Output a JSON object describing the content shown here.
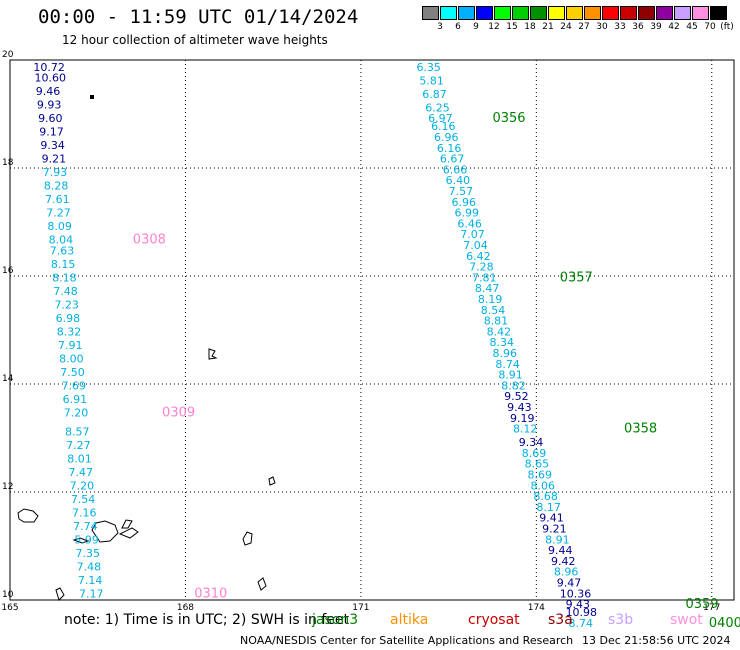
{
  "title": "00:00 - 11:59 UTC 01/14/2024",
  "subtitle": "12 hour collection of altimeter wave heights",
  "legend": {
    "unit": "(ft)",
    "items": [
      {
        "color": "#808080",
        "label": "3"
      },
      {
        "color": "#00ffff",
        "label": "6"
      },
      {
        "color": "#00b0ff",
        "label": "9"
      },
      {
        "color": "#0000ff",
        "label": "12"
      },
      {
        "color": "#00ff00",
        "label": "15"
      },
      {
        "color": "#00d000",
        "label": "18"
      },
      {
        "color": "#009000",
        "label": "21"
      },
      {
        "color": "#ffff00",
        "label": "24"
      },
      {
        "color": "#ffd000",
        "label": "27"
      },
      {
        "color": "#ff9000",
        "label": "30"
      },
      {
        "color": "#ff0000",
        "label": "33"
      },
      {
        "color": "#c80000",
        "label": "36"
      },
      {
        "color": "#900000",
        "label": "39"
      },
      {
        "color": "#9000a0",
        "label": "42"
      },
      {
        "color": "#c8a0ff",
        "label": "45"
      },
      {
        "color": "#ff90e0",
        "label": "70"
      },
      {
        "color": "#000000",
        "label": ""
      }
    ]
  },
  "axes": {
    "x_ticks": [
      "165",
      "168",
      "171",
      "174",
      "177"
    ],
    "y_ticks": [
      "20",
      "18",
      "16",
      "14",
      "12",
      "10"
    ]
  },
  "colors": {
    "cyan": "#00b0e0",
    "navy": "#000090",
    "green": "#008000",
    "pink": "#ff80d0"
  },
  "tracks": [
    {
      "lon": 165.4,
      "lat": 19.8,
      "v": "10.72",
      "c": "navy"
    },
    {
      "lon": 165.42,
      "lat": 19.6,
      "v": "10.60",
      "c": "navy"
    },
    {
      "lon": 165.44,
      "lat": 19.35,
      "v": "9.46",
      "c": "navy"
    },
    {
      "lon": 165.46,
      "lat": 19.1,
      "v": "9.93",
      "c": "navy"
    },
    {
      "lon": 165.48,
      "lat": 18.85,
      "v": "9.60",
      "c": "navy"
    },
    {
      "lon": 165.5,
      "lat": 18.6,
      "v": "9.17",
      "c": "navy"
    },
    {
      "lon": 165.52,
      "lat": 18.35,
      "v": "9.34",
      "c": "navy"
    },
    {
      "lon": 165.54,
      "lat": 18.1,
      "v": "9.21",
      "c": "navy"
    },
    {
      "lon": 165.56,
      "lat": 17.85,
      "v": "7.93",
      "c": "cyan"
    },
    {
      "lon": 165.58,
      "lat": 17.6,
      "v": "8.28",
      "c": "cyan"
    },
    {
      "lon": 165.6,
      "lat": 17.35,
      "v": "7.61",
      "c": "cyan"
    },
    {
      "lon": 165.62,
      "lat": 17.1,
      "v": "7.27",
      "c": "cyan"
    },
    {
      "lon": 165.64,
      "lat": 16.85,
      "v": "8.09",
      "c": "cyan"
    },
    {
      "lon": 165.66,
      "lat": 16.6,
      "v": "8.04",
      "c": "cyan"
    },
    {
      "lon": 165.68,
      "lat": 16.4,
      "v": "7.63",
      "c": "cyan"
    },
    {
      "lon": 165.7,
      "lat": 16.15,
      "v": "8.15",
      "c": "cyan"
    },
    {
      "lon": 165.72,
      "lat": 15.9,
      "v": "8.18",
      "c": "cyan"
    },
    {
      "lon": 165.74,
      "lat": 15.65,
      "v": "7.48",
      "c": "cyan"
    },
    {
      "lon": 165.76,
      "lat": 15.4,
      "v": "7.23",
      "c": "cyan"
    },
    {
      "lon": 165.78,
      "lat": 15.15,
      "v": "6.98",
      "c": "cyan"
    },
    {
      "lon": 165.8,
      "lat": 14.9,
      "v": "8.32",
      "c": "cyan"
    },
    {
      "lon": 165.82,
      "lat": 14.65,
      "v": "7.91",
      "c": "cyan"
    },
    {
      "lon": 165.84,
      "lat": 14.4,
      "v": "8.00",
      "c": "cyan"
    },
    {
      "lon": 165.86,
      "lat": 14.15,
      "v": "7.50",
      "c": "cyan"
    },
    {
      "lon": 165.88,
      "lat": 13.9,
      "v": "7.69",
      "c": "cyan"
    },
    {
      "lon": 165.9,
      "lat": 13.65,
      "v": "6.91",
      "c": "cyan"
    },
    {
      "lon": 165.92,
      "lat": 13.4,
      "v": "7.20",
      "c": "cyan"
    },
    {
      "lon": 165.94,
      "lat": 13.05,
      "v": "8.57",
      "c": "cyan"
    },
    {
      "lon": 165.96,
      "lat": 12.8,
      "v": "7.27",
      "c": "cyan"
    },
    {
      "lon": 165.98,
      "lat": 12.55,
      "v": "8.01",
      "c": "cyan"
    },
    {
      "lon": 166.0,
      "lat": 12.3,
      "v": "7.47",
      "c": "cyan"
    },
    {
      "lon": 166.02,
      "lat": 12.05,
      "v": "7.20",
      "c": "cyan"
    },
    {
      "lon": 166.04,
      "lat": 11.8,
      "v": "7.54",
      "c": "cyan"
    },
    {
      "lon": 166.06,
      "lat": 11.55,
      "v": "7.16",
      "c": "cyan"
    },
    {
      "lon": 166.08,
      "lat": 11.3,
      "v": "7.74",
      "c": "cyan"
    },
    {
      "lon": 166.1,
      "lat": 11.05,
      "v": "5.99",
      "c": "cyan"
    },
    {
      "lon": 166.12,
      "lat": 10.8,
      "v": "7.35",
      "c": "cyan"
    },
    {
      "lon": 166.14,
      "lat": 10.55,
      "v": "7.48",
      "c": "cyan"
    },
    {
      "lon": 166.16,
      "lat": 10.3,
      "v": "7.14",
      "c": "cyan"
    },
    {
      "lon": 166.18,
      "lat": 10.05,
      "v": "7.17",
      "c": "cyan"
    },
    {
      "lon": 171.95,
      "lat": 19.8,
      "v": "6.35",
      "c": "cyan"
    },
    {
      "lon": 172.0,
      "lat": 19.55,
      "v": "5.81",
      "c": "cyan"
    },
    {
      "lon": 172.05,
      "lat": 19.3,
      "v": "6.87",
      "c": "cyan"
    },
    {
      "lon": 172.1,
      "lat": 19.05,
      "v": "6.25",
      "c": "cyan"
    },
    {
      "lon": 172.15,
      "lat": 18.85,
      "v": "6.97",
      "c": "cyan"
    },
    {
      "lon": 172.2,
      "lat": 18.7,
      "v": "6.16",
      "c": "cyan"
    },
    {
      "lon": 172.25,
      "lat": 18.5,
      "v": "6.96",
      "c": "cyan"
    },
    {
      "lon": 172.3,
      "lat": 18.3,
      "v": "6.16",
      "c": "cyan"
    },
    {
      "lon": 172.35,
      "lat": 18.1,
      "v": "6.67",
      "c": "cyan"
    },
    {
      "lon": 172.4,
      "lat": 17.9,
      "v": "6.66",
      "c": "cyan"
    },
    {
      "lon": 172.45,
      "lat": 17.7,
      "v": "6.40",
      "c": "cyan"
    },
    {
      "lon": 172.5,
      "lat": 17.5,
      "v": "7.57",
      "c": "cyan"
    },
    {
      "lon": 172.55,
      "lat": 17.3,
      "v": "6.96",
      "c": "cyan"
    },
    {
      "lon": 172.6,
      "lat": 17.1,
      "v": "6.99",
      "c": "cyan"
    },
    {
      "lon": 172.65,
      "lat": 16.9,
      "v": "6.46",
      "c": "cyan"
    },
    {
      "lon": 172.7,
      "lat": 16.7,
      "v": "7.07",
      "c": "cyan"
    },
    {
      "lon": 172.75,
      "lat": 16.5,
      "v": "7.04",
      "c": "cyan"
    },
    {
      "lon": 172.8,
      "lat": 16.3,
      "v": "6.42",
      "c": "cyan"
    },
    {
      "lon": 172.85,
      "lat": 16.1,
      "v": "7.28",
      "c": "cyan"
    },
    {
      "lon": 172.9,
      "lat": 15.9,
      "v": "7.81",
      "c": "cyan"
    },
    {
      "lon": 172.95,
      "lat": 15.7,
      "v": "8.47",
      "c": "cyan"
    },
    {
      "lon": 173.0,
      "lat": 15.5,
      "v": "8.19",
      "c": "cyan"
    },
    {
      "lon": 173.05,
      "lat": 15.3,
      "v": "8.54",
      "c": "cyan"
    },
    {
      "lon": 173.1,
      "lat": 15.1,
      "v": "8.81",
      "c": "cyan"
    },
    {
      "lon": 173.15,
      "lat": 14.9,
      "v": "8.42",
      "c": "cyan"
    },
    {
      "lon": 173.2,
      "lat": 14.7,
      "v": "8.34",
      "c": "cyan"
    },
    {
      "lon": 173.25,
      "lat": 14.5,
      "v": "8.96",
      "c": "cyan"
    },
    {
      "lon": 173.3,
      "lat": 14.3,
      "v": "8.74",
      "c": "cyan"
    },
    {
      "lon": 173.35,
      "lat": 14.1,
      "v": "8.91",
      "c": "cyan"
    },
    {
      "lon": 173.4,
      "lat": 13.9,
      "v": "8.82",
      "c": "cyan"
    },
    {
      "lon": 173.45,
      "lat": 13.7,
      "v": "9.52",
      "c": "navy"
    },
    {
      "lon": 173.5,
      "lat": 13.5,
      "v": "9.43",
      "c": "navy"
    },
    {
      "lon": 173.55,
      "lat": 13.3,
      "v": "9.19",
      "c": "navy"
    },
    {
      "lon": 173.6,
      "lat": 13.1,
      "v": "8.12",
      "c": "cyan"
    },
    {
      "lon": 173.7,
      "lat": 12.85,
      "v": "9.34",
      "c": "navy"
    },
    {
      "lon": 173.75,
      "lat": 12.65,
      "v": "8.69",
      "c": "cyan"
    },
    {
      "lon": 173.8,
      "lat": 12.45,
      "v": "8.65",
      "c": "cyan"
    },
    {
      "lon": 173.85,
      "lat": 12.25,
      "v": "8.69",
      "c": "cyan"
    },
    {
      "lon": 173.9,
      "lat": 12.05,
      "v": "8.06",
      "c": "cyan"
    },
    {
      "lon": 173.95,
      "lat": 11.85,
      "v": "8.68",
      "c": "cyan"
    },
    {
      "lon": 174.0,
      "lat": 11.65,
      "v": "8.17",
      "c": "cyan"
    },
    {
      "lon": 174.05,
      "lat": 11.45,
      "v": "9.41",
      "c": "navy"
    },
    {
      "lon": 174.1,
      "lat": 11.25,
      "v": "9.21",
      "c": "navy"
    },
    {
      "lon": 174.15,
      "lat": 11.05,
      "v": "8.91",
      "c": "cyan"
    },
    {
      "lon": 174.2,
      "lat": 10.85,
      "v": "9.44",
      "c": "navy"
    },
    {
      "lon": 174.25,
      "lat": 10.65,
      "v": "9.42",
      "c": "navy"
    },
    {
      "lon": 174.3,
      "lat": 10.45,
      "v": "8.96",
      "c": "cyan"
    },
    {
      "lon": 174.35,
      "lat": 10.25,
      "v": "9.47",
      "c": "navy"
    },
    {
      "lon": 174.4,
      "lat": 10.05,
      "v": "10.36",
      "c": "navy"
    },
    {
      "lon": 174.5,
      "lat": 9.85,
      "v": "9.43",
      "c": "navy"
    },
    {
      "lon": 174.5,
      "lat": 9.7,
      "v": "10.98",
      "c": "navy"
    },
    {
      "lon": 174.55,
      "lat": 9.5,
      "v": "8.74",
      "c": "cyan"
    }
  ],
  "time_labels": [
    {
      "lon": 167.1,
      "lat": 16.6,
      "text": "0308",
      "c": "pink"
    },
    {
      "lon": 167.6,
      "lat": 13.4,
      "text": "0309",
      "c": "pink"
    },
    {
      "lon": 168.15,
      "lat": 10.05,
      "text": "0310",
      "c": "pink"
    },
    {
      "lon": 173.25,
      "lat": 18.85,
      "text": "0356",
      "c": "green"
    },
    {
      "lon": 174.4,
      "lat": 15.9,
      "text": "0357",
      "c": "green"
    },
    {
      "lon": 175.5,
      "lat": 13.1,
      "text": "0358",
      "c": "green"
    },
    {
      "lon": 176.55,
      "lat": 9.85,
      "text": "0359",
      "c": "green"
    },
    {
      "lon": 176.95,
      "lat": 9.5,
      "text": "0400",
      "c": "green"
    }
  ],
  "note": "note: 1) Time is in UTC; 2) SWH is in feet",
  "missions": [
    {
      "name": "jason3",
      "color": "#008000"
    },
    {
      "name": "altika",
      "color": "#ff9000"
    },
    {
      "name": "cryosat",
      "color": "#c80000"
    },
    {
      "name": "s3a",
      "color": "#900000"
    },
    {
      "name": "s3b",
      "color": "#c8a0ff"
    },
    {
      "name": "swot",
      "color": "#ff90e0"
    }
  ],
  "footer_left": "NOAA/NESDIS Center for Satellite Applications and Research",
  "footer_right": "13 Dec 21:58:56 UTC 2024"
}
